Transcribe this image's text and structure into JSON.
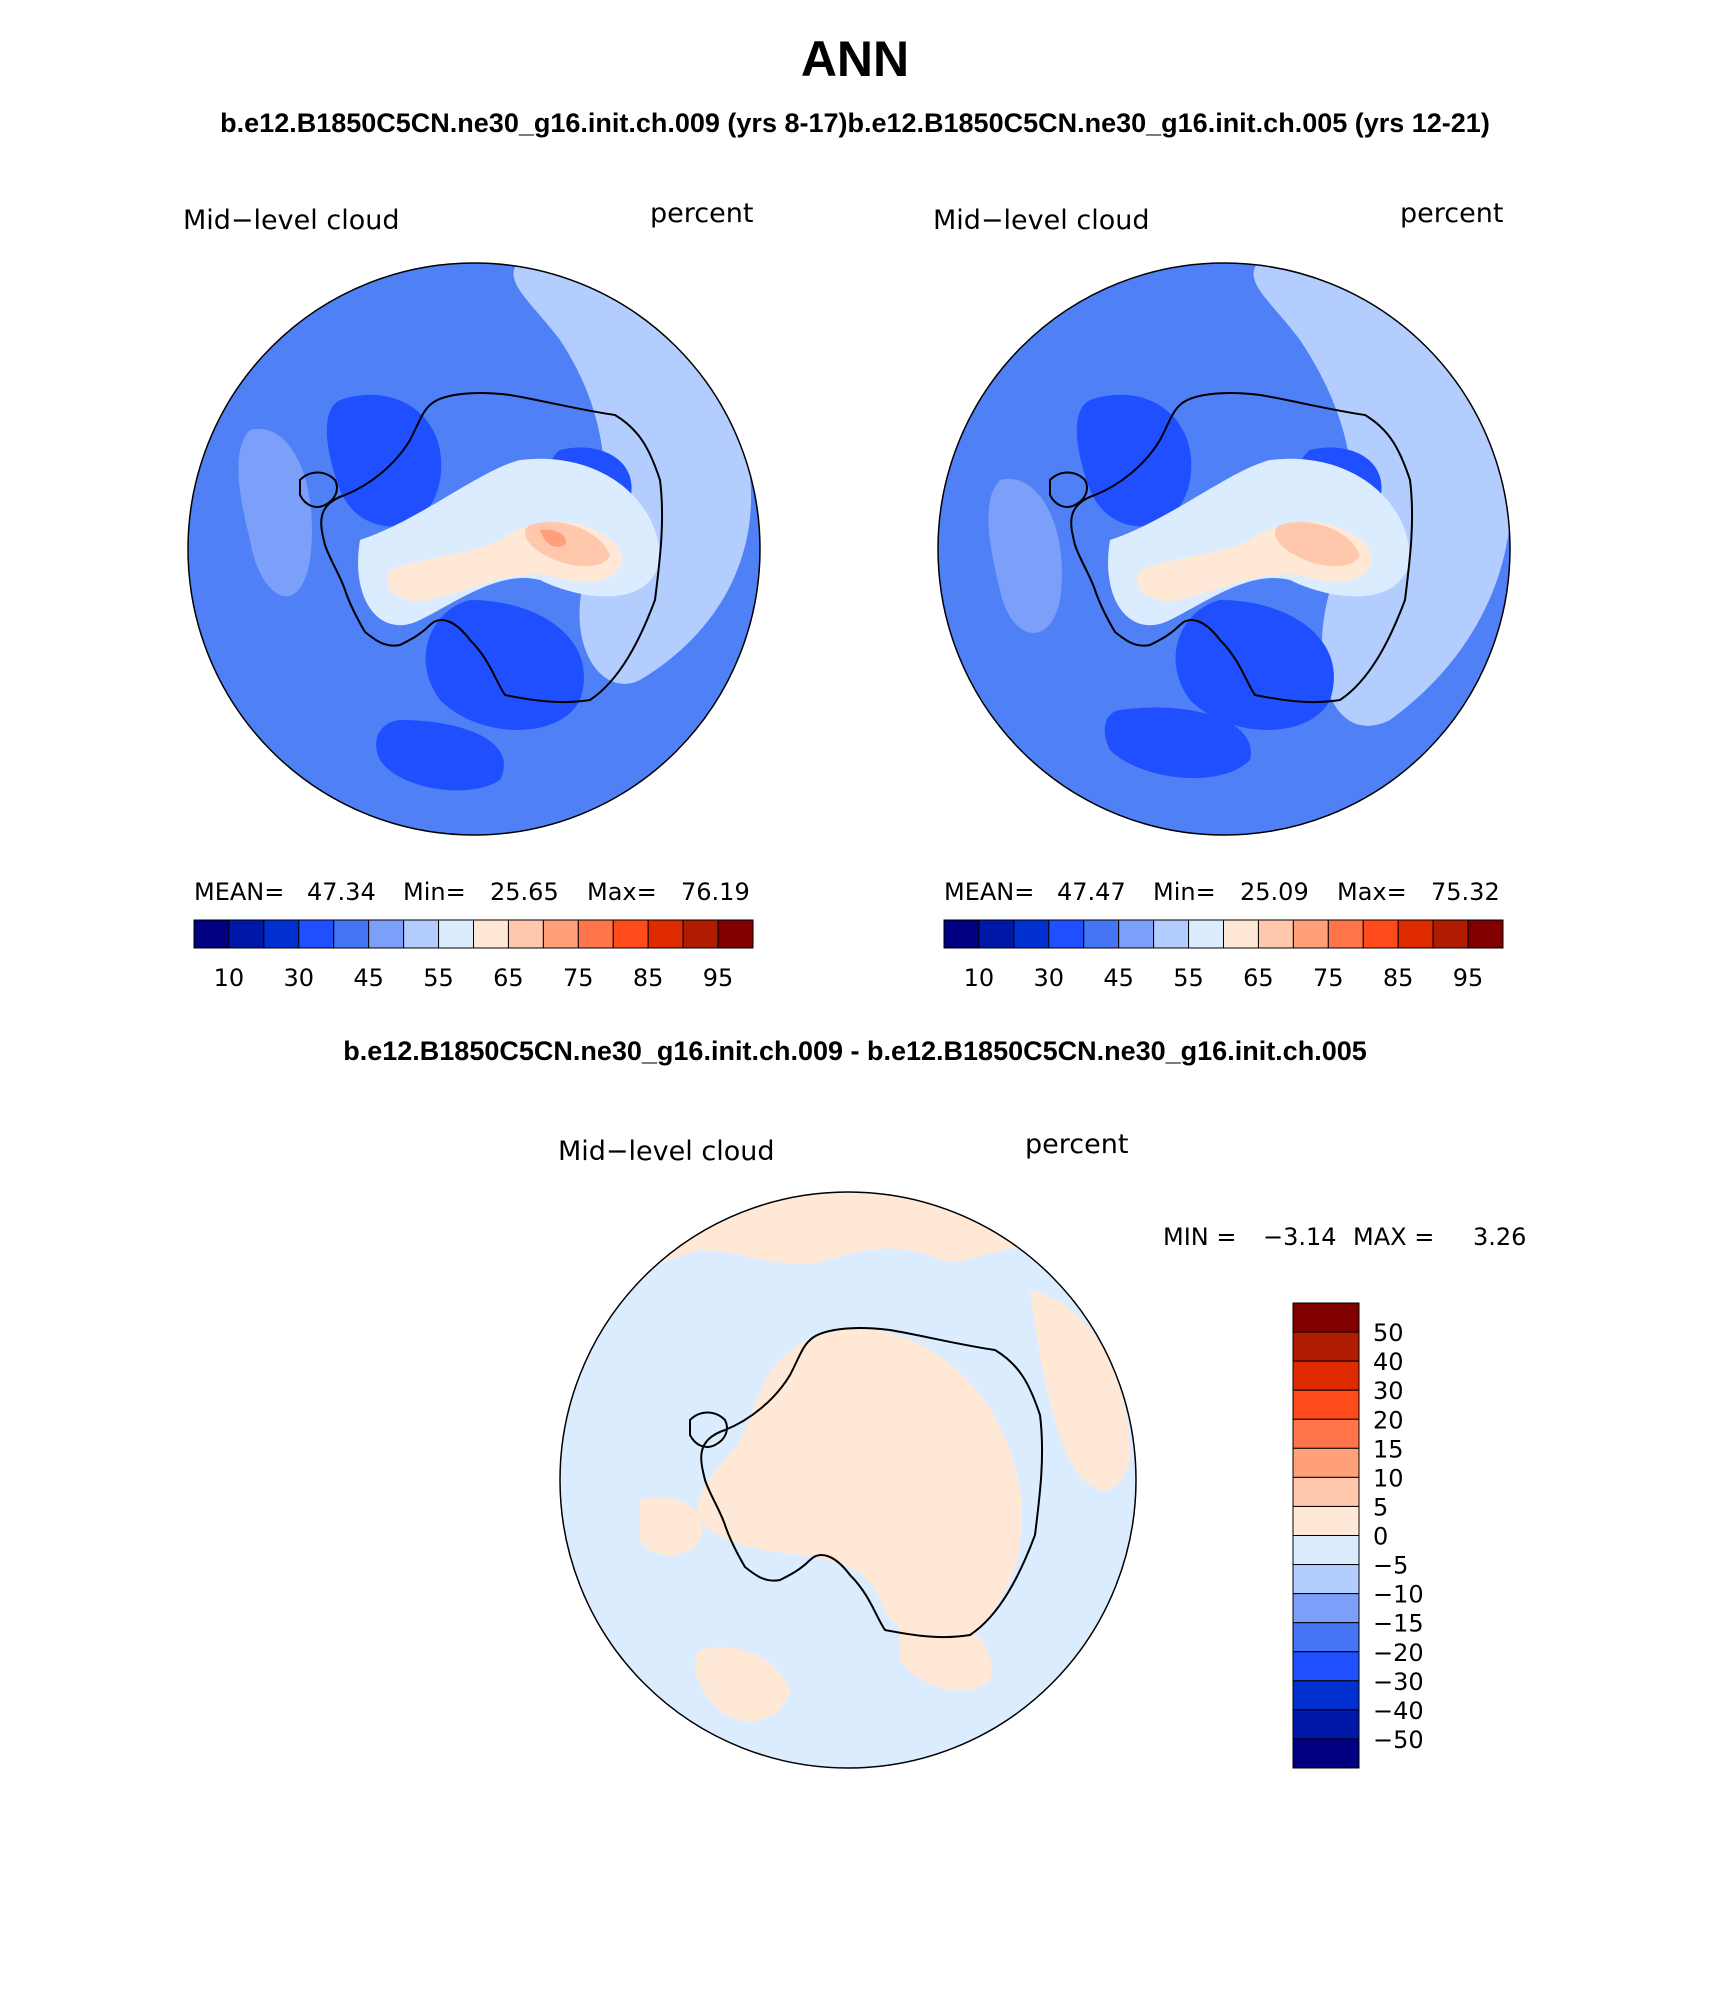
{
  "title": "ANN",
  "case_titles": "b.e12.B1850C5CN.ne30_g16.init.ch.009 (yrs 8-17)b.e12.B1850C5CN.ne30_g16.init.ch.005 (yrs 12-21)",
  "diff_title": "b.e12.B1850C5CN.ne30_g16.init.ch.009 - b.e12.B1850C5CN.ne30_g16.init.ch.005",
  "panels": [
    {
      "variable": "Mid−level cloud",
      "units": "percent",
      "mean_label": "MEAN=",
      "mean": "47.34",
      "min_label": "Min=",
      "min": "25.65",
      "max_label": "Max=",
      "max": "76.19"
    },
    {
      "variable": "Mid−level cloud",
      "units": "percent",
      "mean_label": "MEAN=",
      "mean": "47.47",
      "min_label": "Min=",
      "min": "25.09",
      "max_label": "Max=",
      "max": "75.32"
    }
  ],
  "diff_panel": {
    "variable": "Mid−level cloud",
    "units": "percent",
    "min_label": "MIN =",
    "min": "−3.14",
    "max_label": "MAX =",
    "max": "3.26"
  },
  "colorbar_main": {
    "colors": [
      "#000080",
      "#0018a8",
      "#0030d0",
      "#1f4fff",
      "#4575f5",
      "#7ca0fa",
      "#b3cdff",
      "#dcecff",
      "#ffe9d6",
      "#ffc8ad",
      "#ffa07a",
      "#ff7448",
      "#ff4a1a",
      "#e02a00",
      "#b01c00",
      "#800000"
    ],
    "tick_labels": [
      "10",
      "30",
      "45",
      "55",
      "65",
      "75",
      "85",
      "95"
    ]
  },
  "colorbar_diff": {
    "colors": [
      "#800000",
      "#b01c00",
      "#e02a00",
      "#ff4a1a",
      "#ff7448",
      "#ffa07a",
      "#ffc8ad",
      "#ffe9d6",
      "#dcecff",
      "#b3cdff",
      "#7ca0fa",
      "#4575f5",
      "#1f4fff",
      "#0030d0",
      "#0018a8",
      "#000080"
    ],
    "tick_labels": [
      "50",
      "40",
      "30",
      "20",
      "15",
      "10",
      "5",
      "0",
      "−5",
      "−10",
      "−15",
      "−20",
      "−30",
      "−40",
      "−50"
    ]
  },
  "map_colors": {
    "ocean_main": "#4f80f5",
    "dark_blue": "#1f4fff",
    "pale_blue": "#7ca0fa",
    "light_blue": "#b3cdff",
    "very_light": "#dcecff",
    "peach": "#ffe9d6",
    "salmon": "#ffc8ad",
    "orange": "#ffa07a",
    "diff_neg": "#dcecff",
    "diff_pos": "#ffe9d6"
  }
}
